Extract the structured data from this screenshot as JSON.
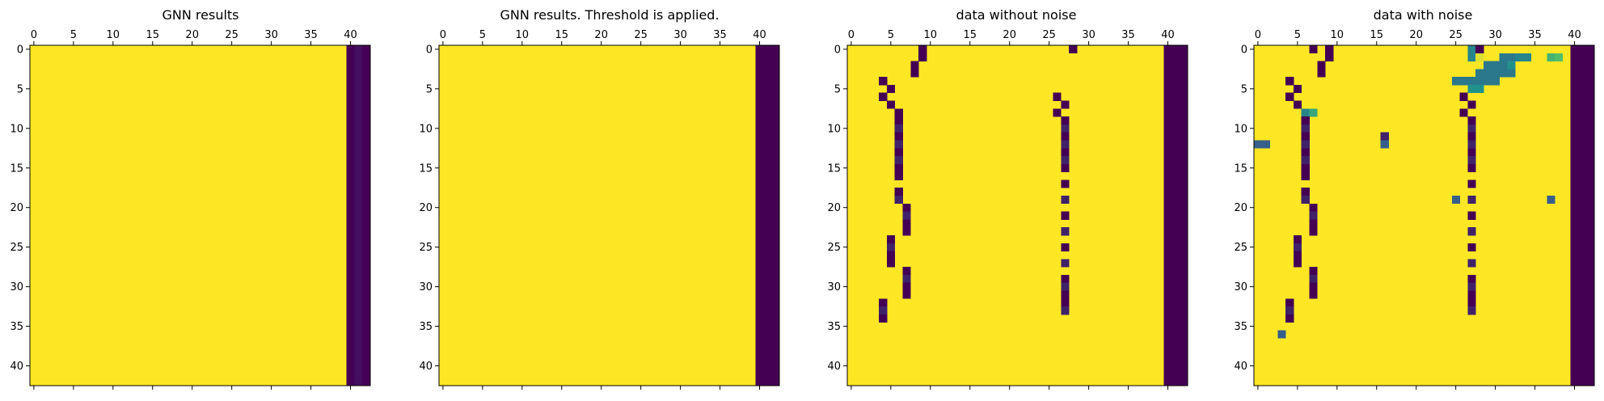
{
  "colors": {
    "high": "#fde725",
    "low": "#440154",
    "mid_dark": "#3b528b",
    "mid_teal": "#21918c",
    "mid_green": "#5ec962",
    "axis": "#000000",
    "background": "#ffffff"
  },
  "chart_data": [
    {
      "type": "heatmap",
      "title": "GNN results",
      "rows": 43,
      "cols": 43,
      "xticks": [
        0,
        5,
        10,
        15,
        20,
        25,
        30,
        35,
        40
      ],
      "yticks": [
        0,
        5,
        10,
        15,
        20,
        25,
        30,
        35,
        40
      ],
      "xtick_position": "top",
      "colormap": "viridis",
      "value_range": [
        0,
        1
      ],
      "default_value": 1.0,
      "column_values": [
        {
          "col": 40,
          "value": 0.0
        },
        {
          "col": 41,
          "value": 0.04
        },
        {
          "col": 42,
          "value": 0.0
        }
      ],
      "cells": []
    },
    {
      "type": "heatmap",
      "title": "GNN results. Threshold is applied.",
      "rows": 43,
      "cols": 43,
      "xticks": [
        0,
        5,
        10,
        15,
        20,
        25,
        30,
        35,
        40
      ],
      "yticks": [
        0,
        5,
        10,
        15,
        20,
        25,
        30,
        35,
        40
      ],
      "xtick_position": "top",
      "colormap": "viridis",
      "value_range": [
        0,
        1
      ],
      "default_value": 1.0,
      "column_values": [
        {
          "col": 40,
          "value": 0.0
        },
        {
          "col": 41,
          "value": 0.0
        },
        {
          "col": 42,
          "value": 0.0
        }
      ],
      "cells": []
    },
    {
      "type": "heatmap",
      "title": "data without noise",
      "rows": 43,
      "cols": 43,
      "xticks": [
        0,
        5,
        10,
        15,
        20,
        25,
        30,
        35,
        40
      ],
      "yticks": [
        0,
        5,
        10,
        15,
        20,
        25,
        30,
        35,
        40
      ],
      "xtick_position": "top",
      "colormap": "viridis",
      "value_range": [
        0,
        1
      ],
      "default_value": 1.0,
      "column_values": [
        {
          "col": 40,
          "value": 0.0
        },
        {
          "col": 41,
          "value": 0.0
        },
        {
          "col": 42,
          "value": 0.0
        }
      ],
      "cells": [
        [
          0,
          9,
          0.0
        ],
        [
          0,
          28,
          0.0
        ],
        [
          1,
          9,
          0.0
        ],
        [
          2,
          8,
          0.0
        ],
        [
          3,
          8,
          0.0
        ],
        [
          4,
          4,
          0.0
        ],
        [
          5,
          5,
          0.0
        ],
        [
          6,
          4,
          0.0
        ],
        [
          6,
          26,
          0.0
        ],
        [
          7,
          5,
          0.0
        ],
        [
          7,
          27,
          0.0
        ],
        [
          8,
          6,
          0.0
        ],
        [
          8,
          26,
          0.0
        ],
        [
          9,
          6,
          0.0
        ],
        [
          10,
          6,
          0.1
        ],
        [
          11,
          6,
          0.0
        ],
        [
          12,
          6,
          0.1
        ],
        [
          13,
          6,
          0.0
        ],
        [
          14,
          6,
          0.1
        ],
        [
          15,
          6,
          0.0
        ],
        [
          16,
          6,
          0.0
        ],
        [
          18,
          6,
          0.0
        ],
        [
          19,
          6,
          0.1
        ],
        [
          20,
          7,
          0.0
        ],
        [
          21,
          7,
          0.1
        ],
        [
          22,
          7,
          0.0
        ],
        [
          23,
          7,
          0.0
        ],
        [
          24,
          5,
          0.0
        ],
        [
          25,
          5,
          0.1
        ],
        [
          26,
          5,
          0.0
        ],
        [
          27,
          5,
          0.0
        ],
        [
          28,
          7,
          0.0
        ],
        [
          29,
          7,
          0.1
        ],
        [
          30,
          7,
          0.0
        ],
        [
          31,
          7,
          0.0
        ],
        [
          32,
          4,
          0.0
        ],
        [
          33,
          4,
          0.1
        ],
        [
          34,
          4,
          0.0
        ],
        [
          9,
          27,
          0.0
        ],
        [
          10,
          27,
          0.1
        ],
        [
          11,
          27,
          0.0
        ],
        [
          12,
          27,
          0.1
        ],
        [
          13,
          27,
          0.0
        ],
        [
          14,
          27,
          0.1
        ],
        [
          15,
          27,
          0.0
        ],
        [
          17,
          27,
          0.0
        ],
        [
          19,
          27,
          0.1
        ],
        [
          21,
          27,
          0.0
        ],
        [
          23,
          27,
          0.1
        ],
        [
          25,
          27,
          0.0
        ],
        [
          27,
          27,
          0.1
        ],
        [
          29,
          27,
          0.0
        ],
        [
          30,
          27,
          0.1
        ],
        [
          31,
          27,
          0.0
        ],
        [
          32,
          27,
          0.0
        ],
        [
          33,
          27,
          0.1
        ]
      ]
    },
    {
      "type": "heatmap",
      "title": "data with noise",
      "rows": 43,
      "cols": 43,
      "xticks": [
        0,
        5,
        10,
        15,
        20,
        25,
        30,
        35,
        40
      ],
      "yticks": [
        0,
        5,
        10,
        15,
        20,
        25,
        30,
        35,
        40
      ],
      "xtick_position": "top",
      "colormap": "viridis",
      "value_range": [
        0,
        1
      ],
      "default_value": 1.0,
      "column_values": [
        {
          "col": 40,
          "value": 0.0
        },
        {
          "col": 41,
          "value": 0.0
        },
        {
          "col": 42,
          "value": 0.0
        }
      ],
      "cells": [
        [
          0,
          7,
          0.0
        ],
        [
          0,
          9,
          0.0
        ],
        [
          1,
          9,
          0.0
        ],
        [
          2,
          8,
          0.0
        ],
        [
          3,
          8,
          0.0
        ],
        [
          0,
          27,
          0.45
        ],
        [
          0,
          28,
          0.0
        ],
        [
          1,
          27,
          0.45
        ],
        [
          1,
          28,
          0.95
        ],
        [
          1,
          31,
          0.4
        ],
        [
          1,
          32,
          0.4
        ],
        [
          1,
          33,
          0.45
        ],
        [
          1,
          34,
          0.45
        ],
        [
          1,
          37,
          0.65
        ],
        [
          1,
          38,
          0.7
        ],
        [
          2,
          29,
          0.4
        ],
        [
          2,
          30,
          0.4
        ],
        [
          2,
          31,
          0.4
        ],
        [
          2,
          32,
          0.5
        ],
        [
          3,
          28,
          0.4
        ],
        [
          3,
          29,
          0.4
        ],
        [
          3,
          30,
          0.4
        ],
        [
          3,
          31,
          0.4
        ],
        [
          3,
          32,
          0.4
        ],
        [
          4,
          25,
          0.4
        ],
        [
          4,
          26,
          0.4
        ],
        [
          4,
          27,
          0.4
        ],
        [
          4,
          28,
          0.4
        ],
        [
          4,
          29,
          0.4
        ],
        [
          4,
          30,
          0.4
        ],
        [
          5,
          27,
          0.5
        ],
        [
          5,
          28,
          0.5
        ],
        [
          4,
          4,
          0.0
        ],
        [
          5,
          5,
          0.0
        ],
        [
          6,
          4,
          0.0
        ],
        [
          7,
          5,
          0.0
        ],
        [
          6,
          26,
          0.0
        ],
        [
          7,
          27,
          0.0
        ],
        [
          8,
          26,
          0.0
        ],
        [
          8,
          6,
          0.45
        ],
        [
          8,
          7,
          0.6
        ],
        [
          12,
          0,
          0.3
        ],
        [
          12,
          1,
          0.3
        ],
        [
          11,
          16,
          0.1
        ],
        [
          12,
          16,
          0.3
        ],
        [
          9,
          6,
          0.0
        ],
        [
          10,
          6,
          0.1
        ],
        [
          11,
          6,
          0.0
        ],
        [
          12,
          6,
          0.1
        ],
        [
          13,
          6,
          0.0
        ],
        [
          14,
          6,
          0.1
        ],
        [
          15,
          6,
          0.0
        ],
        [
          16,
          6,
          0.0
        ],
        [
          18,
          6,
          0.0
        ],
        [
          19,
          6,
          0.1
        ],
        [
          20,
          7,
          0.0
        ],
        [
          21,
          7,
          0.1
        ],
        [
          22,
          7,
          0.0
        ],
        [
          23,
          7,
          0.0
        ],
        [
          24,
          5,
          0.0
        ],
        [
          25,
          5,
          0.1
        ],
        [
          26,
          5,
          0.0
        ],
        [
          27,
          5,
          0.0
        ],
        [
          28,
          7,
          0.0
        ],
        [
          29,
          7,
          0.1
        ],
        [
          30,
          7,
          0.0
        ],
        [
          31,
          7,
          0.0
        ],
        [
          32,
          4,
          0.0
        ],
        [
          33,
          4,
          0.1
        ],
        [
          34,
          4,
          0.0
        ],
        [
          36,
          3,
          0.3
        ],
        [
          19,
          25,
          0.3
        ],
        [
          19,
          37,
          0.3
        ],
        [
          9,
          27,
          0.0
        ],
        [
          10,
          27,
          0.1
        ],
        [
          11,
          27,
          0.0
        ],
        [
          12,
          27,
          0.1
        ],
        [
          13,
          27,
          0.0
        ],
        [
          14,
          27,
          0.1
        ],
        [
          15,
          27,
          0.0
        ],
        [
          17,
          27,
          0.0
        ],
        [
          19,
          27,
          0.1
        ],
        [
          21,
          27,
          0.0
        ],
        [
          23,
          27,
          0.1
        ],
        [
          25,
          27,
          0.0
        ],
        [
          27,
          27,
          0.1
        ],
        [
          29,
          27,
          0.0
        ],
        [
          30,
          27,
          0.1
        ],
        [
          31,
          27,
          0.0
        ],
        [
          32,
          27,
          0.0
        ],
        [
          33,
          27,
          0.1
        ]
      ]
    }
  ]
}
